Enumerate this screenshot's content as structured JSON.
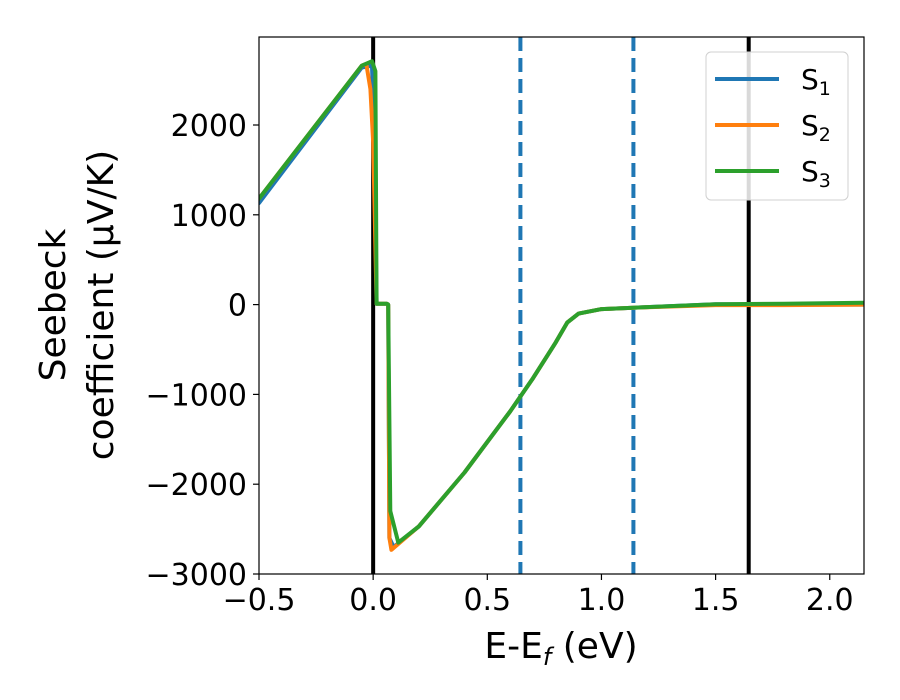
{
  "chart_data": {
    "type": "line",
    "xlabel_parts": [
      "E-E",
      "f",
      " (eV)"
    ],
    "ylabel_lines": [
      "Seebeck",
      "coefficient  (μV/K)"
    ],
    "xlim": [
      -0.5,
      2.15
    ],
    "ylim": [
      -3000,
      2980
    ],
    "xticks": [
      -0.5,
      0.0,
      0.5,
      1.0,
      1.5,
      2.0
    ],
    "xtick_labels": [
      "−0.5",
      "0.0",
      "0.5",
      "1.0",
      "1.5",
      "2.0"
    ],
    "yticks": [
      -3000,
      -2000,
      -1000,
      0,
      1000,
      2000
    ],
    "ytick_labels": [
      "−3000",
      "−2000",
      "−1000",
      "0",
      "1000",
      "2000"
    ],
    "grid": false,
    "legend_position": "top-right",
    "vlines": [
      {
        "x": 0.0,
        "style": "solid",
        "color": "#000000"
      },
      {
        "x": 0.645,
        "style": "dashed",
        "color": "#1f77b4"
      },
      {
        "x": 1.14,
        "style": "dashed",
        "color": "#1f77b4"
      },
      {
        "x": 1.645,
        "style": "solid",
        "color": "#000000"
      }
    ],
    "series": [
      {
        "legend_base": "S",
        "legend_sub": "1",
        "color": "#1f77b4",
        "x": [
          -0.5,
          -0.05,
          -0.005,
          0.005,
          0.015,
          0.06,
          0.066,
          0.071,
          0.09,
          0.2,
          0.4,
          0.6,
          0.7,
          0.8,
          0.85,
          0.9,
          1.0,
          1.14,
          1.5,
          1.8,
          2.15
        ],
        "y": [
          1130,
          2640,
          2660,
          1800,
          10,
          10,
          0,
          -2600,
          -2700,
          -2470,
          -1870,
          -1190,
          -820,
          -420,
          -200,
          -100,
          -50,
          -35,
          5,
          0,
          0
        ]
      },
      {
        "legend_base": "S",
        "legend_sub": "2",
        "color": "#ff7f0e",
        "x": [
          -0.5,
          -0.05,
          -0.03,
          -0.012,
          0.0,
          0.015,
          0.06,
          0.066,
          0.071,
          0.08,
          0.2,
          0.4,
          0.6,
          0.7,
          0.8,
          0.85,
          0.9,
          1.0,
          1.14,
          1.5,
          1.8,
          2.15
        ],
        "y": [
          1180,
          2660,
          2680,
          2400,
          1800,
          10,
          10,
          0,
          -2600,
          -2730,
          -2470,
          -1870,
          -1190,
          -820,
          -420,
          -200,
          -100,
          -50,
          -35,
          -5,
          -5,
          0
        ]
      },
      {
        "legend_base": "S",
        "legend_sub": "3",
        "color": "#2ca02c",
        "x": [
          -0.5,
          -0.05,
          -0.005,
          0.01,
          0.015,
          0.06,
          0.066,
          0.075,
          0.11,
          0.2,
          0.4,
          0.6,
          0.7,
          0.8,
          0.85,
          0.9,
          1.0,
          1.14,
          1.5,
          1.8,
          2.15
        ],
        "y": [
          1180,
          2660,
          2710,
          2600,
          10,
          10,
          0,
          -2300,
          -2650,
          -2470,
          -1870,
          -1190,
          -820,
          -420,
          -200,
          -100,
          -50,
          -35,
          5,
          10,
          20
        ]
      }
    ]
  }
}
